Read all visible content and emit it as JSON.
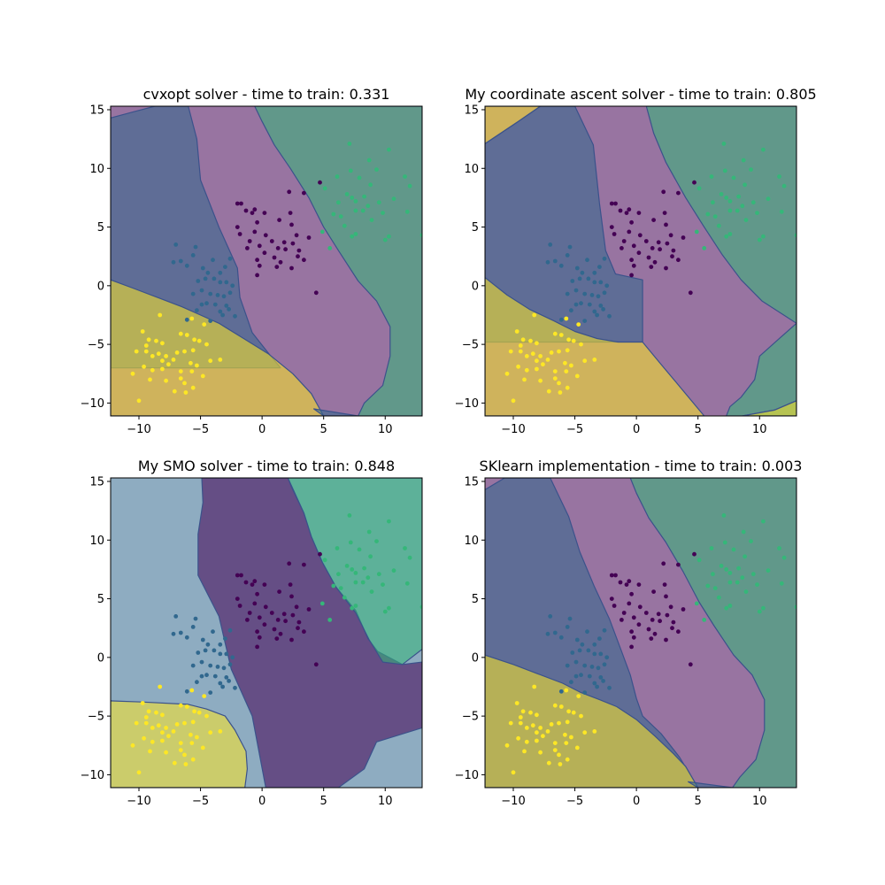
{
  "colors": {
    "class_0": "#440154",
    "class_1": "#31688e",
    "class_2": "#35b779",
    "class_3": "#fde725",
    "region_alpha": 0.5,
    "boundary": "#3b528b"
  },
  "chart_data": [
    {
      "type": "scatter",
      "title": "cvxopt solver - time to train: 0.331",
      "xlim": [
        -12.3,
        13.0
      ],
      "ylim": [
        -11.1,
        15.3
      ],
      "xticks": [
        -10,
        -5,
        0,
        5,
        10
      ],
      "yticks": [
        -10,
        -5,
        0,
        5,
        10,
        15
      ],
      "xlabel": "",
      "ylabel": "",
      "grid": false
    },
    {
      "type": "scatter",
      "title": "My coordinate ascent solver - time to train: 0.805",
      "xlim": [
        -12.3,
        13.0
      ],
      "ylim": [
        -11.1,
        15.3
      ],
      "xticks": [
        -10,
        -5,
        0,
        5,
        10
      ],
      "yticks": [
        -10,
        -5,
        0,
        5,
        10,
        15
      ],
      "xlabel": "",
      "ylabel": "",
      "grid": false
    },
    {
      "type": "scatter",
      "title": "My SMO solver - time to train: 0.848",
      "xlim": [
        -12.3,
        13.0
      ],
      "ylim": [
        -11.1,
        15.3
      ],
      "xticks": [
        -10,
        -5,
        0,
        5,
        10
      ],
      "yticks": [
        -10,
        -5,
        0,
        5,
        10,
        15
      ],
      "xlabel": "",
      "ylabel": "",
      "grid": false
    },
    {
      "type": "scatter",
      "title": "SKlearn implementation - time to train: 0.003",
      "xlim": [
        -12.3,
        13.0
      ],
      "ylim": [
        -11.1,
        15.3
      ],
      "xticks": [
        -10,
        -5,
        0,
        5,
        10
      ],
      "yticks": [
        -10,
        -5,
        0,
        5,
        10,
        15
      ],
      "xlabel": "",
      "ylabel": "",
      "grid": false
    }
  ],
  "shared_points": {
    "class_0": [
      [
        -2,
        7
      ],
      [
        -1.7,
        7
      ],
      [
        -1.3,
        6.4
      ],
      [
        -0.8,
        6.2
      ],
      [
        -0.6,
        6.5
      ],
      [
        -0.4,
        5.4
      ],
      [
        0.2,
        6.2
      ],
      [
        1.4,
        5.6
      ],
      [
        2.2,
        8
      ],
      [
        2.3,
        6.2
      ],
      [
        3.4,
        7.9
      ],
      [
        4.7,
        8.8
      ],
      [
        -1.8,
        4.4
      ],
      [
        -1.2,
        3.2
      ],
      [
        -0.6,
        4.6
      ],
      [
        -0.4,
        2.2
      ],
      [
        0.2,
        2.8
      ],
      [
        0.3,
        4.3
      ],
      [
        0.8,
        3.8
      ],
      [
        1.3,
        3.2
      ],
      [
        1.9,
        3.1
      ],
      [
        2.5,
        3.6
      ],
      [
        2.9,
        2.5
      ],
      [
        3.4,
        2.2
      ],
      [
        1.5,
        2
      ],
      [
        1.2,
        1.6
      ],
      [
        2.4,
        1.5
      ],
      [
        1.8,
        3.7
      ],
      [
        2.4,
        5.2
      ],
      [
        -0.2,
        1.7
      ],
      [
        -0.4,
        0.9
      ],
      [
        4.4,
        -0.6
      ],
      [
        3.8,
        4.1
      ],
      [
        -2,
        5
      ],
      [
        -1,
        3.8
      ],
      [
        -0.2,
        3.4
      ],
      [
        1,
        2.4
      ],
      [
        3,
        3
      ],
      [
        2.8,
        4.3
      ]
    ],
    "class_1": [
      [
        -7,
        3.5
      ],
      [
        -5.4,
        3.3
      ],
      [
        -7.2,
        2
      ],
      [
        -6.6,
        2.1
      ],
      [
        -6.1,
        1.7
      ],
      [
        -5.6,
        2.6
      ],
      [
        -4.8,
        1.5
      ],
      [
        -4.4,
        1.1
      ],
      [
        -4,
        2.2
      ],
      [
        -3.4,
        1.1
      ],
      [
        -3,
        1.6
      ],
      [
        -2.6,
        2.3
      ],
      [
        -5.2,
        0.4
      ],
      [
        -4.6,
        0.6
      ],
      [
        -3.9,
        0.6
      ],
      [
        -3.4,
        0.3
      ],
      [
        -2.9,
        0.3
      ],
      [
        -2.4,
        0
      ],
      [
        -5.6,
        -0.7
      ],
      [
        -4.9,
        -0.4
      ],
      [
        -4.2,
        -0.7
      ],
      [
        -3.6,
        -0.8
      ],
      [
        -3.1,
        -0.9
      ],
      [
        -2.6,
        -0.6
      ],
      [
        -4.9,
        -1.6
      ],
      [
        -4.5,
        -1.5
      ],
      [
        -3.8,
        -1.6
      ],
      [
        -3.4,
        -2.2
      ],
      [
        -2.9,
        -1.7
      ],
      [
        -6.1,
        -2.9
      ],
      [
        -5.3,
        -2.1
      ],
      [
        -4.2,
        -3
      ],
      [
        -2.2,
        -2.6
      ],
      [
        -2.7,
        -2
      ],
      [
        -3.2,
        -2.5
      ]
    ],
    "class_2": [
      [
        7.1,
        12.1
      ],
      [
        8.7,
        10.7
      ],
      [
        8.8,
        8.6
      ],
      [
        9.3,
        9.9
      ],
      [
        6.1,
        9.3
      ],
      [
        7.2,
        9.8
      ],
      [
        7.9,
        9.2
      ],
      [
        10.3,
        11.6
      ],
      [
        11.6,
        9.3
      ],
      [
        12,
        8.5
      ],
      [
        6.2,
        7.1
      ],
      [
        6.9,
        7.8
      ],
      [
        7.3,
        7.5
      ],
      [
        7.6,
        7.2
      ],
      [
        8.3,
        7.6
      ],
      [
        8.6,
        6.8
      ],
      [
        9.5,
        7.1
      ],
      [
        10.7,
        7.4
      ],
      [
        11.8,
        6.3
      ],
      [
        5.8,
        6.1
      ],
      [
        6.4,
        5.9
      ],
      [
        7.6,
        6.4
      ],
      [
        8.9,
        5.6
      ],
      [
        6.7,
        5.1
      ],
      [
        7.3,
        4.2
      ],
      [
        7.6,
        4.4
      ],
      [
        10,
        3.9
      ],
      [
        10.3,
        4.2
      ],
      [
        13,
        4.3
      ],
      [
        4.9,
        4.6
      ],
      [
        5.5,
        3.2
      ],
      [
        8.2,
        6.4
      ],
      [
        9.8,
        6.2
      ],
      [
        5.1,
        8.3
      ]
    ],
    "class_3": [
      [
        -8.3,
        -2.5
      ],
      [
        -9.7,
        -3.9
      ],
      [
        -9.2,
        -4.6
      ],
      [
        -8.6,
        -4.7
      ],
      [
        -9.4,
        -5.1
      ],
      [
        -8.1,
        -4.9
      ],
      [
        -6.6,
        -4.1
      ],
      [
        -6.1,
        -4.2
      ],
      [
        -5.5,
        -4.6
      ],
      [
        -5.1,
        -4.7
      ],
      [
        -4.5,
        -5
      ],
      [
        -10.2,
        -5.6
      ],
      [
        -9.4,
        -5.6
      ],
      [
        -8.9,
        -6
      ],
      [
        -8.4,
        -5.8
      ],
      [
        -8.1,
        -6.4
      ],
      [
        -7.8,
        -6
      ],
      [
        -7.2,
        -6.3
      ],
      [
        -6.9,
        -5.7
      ],
      [
        -6.3,
        -5.6
      ],
      [
        -5.6,
        -5.5
      ],
      [
        -4.2,
        -6.4
      ],
      [
        -3.4,
        -6.3
      ],
      [
        -9.6,
        -6.9
      ],
      [
        -8.9,
        -7.2
      ],
      [
        -8.1,
        -7.1
      ],
      [
        -7.6,
        -6.7
      ],
      [
        -6.6,
        -7.3
      ],
      [
        -5.8,
        -6.6
      ],
      [
        -5.3,
        -6.8
      ],
      [
        -4.8,
        -7.7
      ],
      [
        -10.5,
        -7.5
      ],
      [
        -9.1,
        -8
      ],
      [
        -7.8,
        -8.1
      ],
      [
        -6.6,
        -7.9
      ],
      [
        -6.3,
        -8.3
      ],
      [
        -5.7,
        -7.3
      ],
      [
        -5.6,
        -8.7
      ],
      [
        -7.1,
        -9
      ],
      [
        -6.2,
        -9.1
      ],
      [
        -10,
        -9.8
      ],
      [
        -5.7,
        -2.8
      ],
      [
        -4.7,
        -3.3
      ]
    ]
  }
}
